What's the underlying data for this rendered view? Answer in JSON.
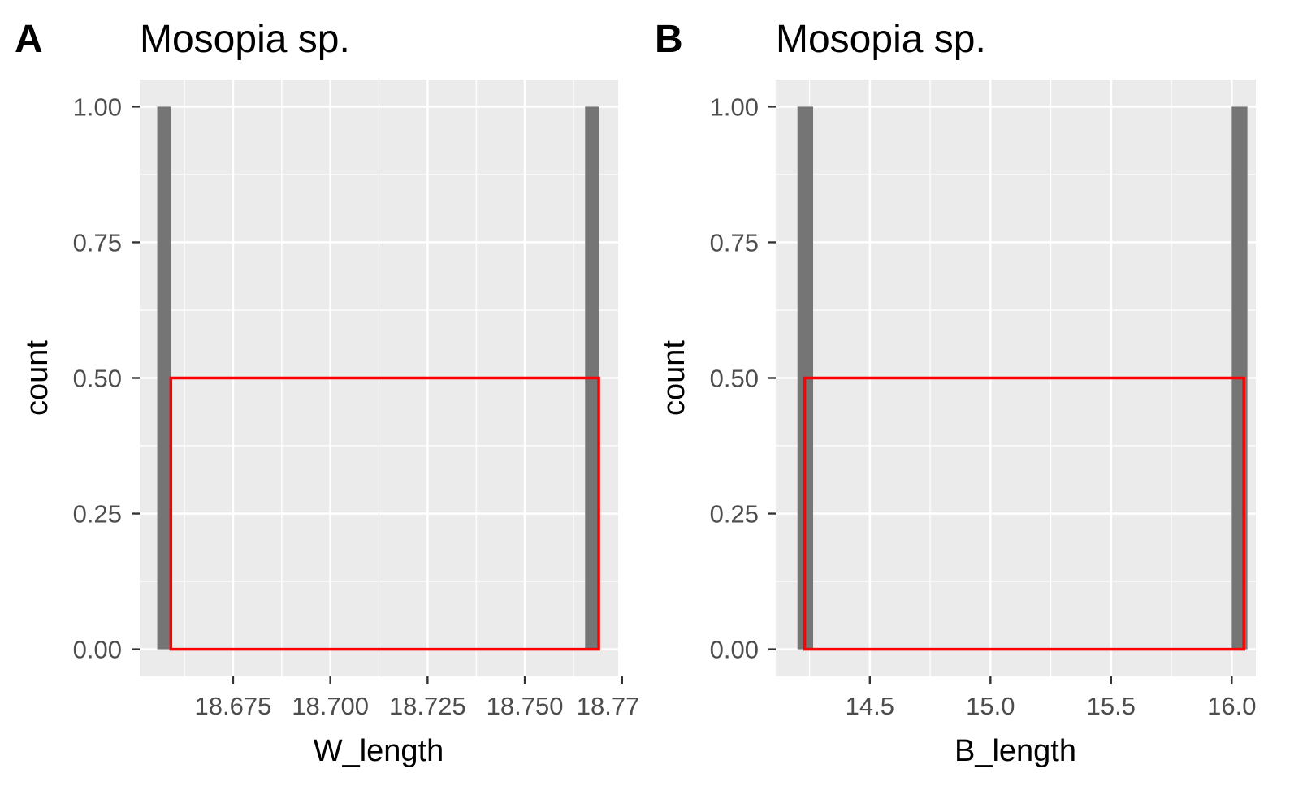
{
  "chart_data": [
    {
      "panel_tag": "A",
      "type": "bar",
      "title": "Mosopia sp.",
      "xlabel": "W_length",
      "ylabel": "count",
      "xlim": [
        18.651,
        18.774
      ],
      "ylim": [
        -0.05,
        1.05
      ],
      "x_ticks": [
        18.675,
        18.7,
        18.725,
        18.75,
        18.775
      ],
      "x_tick_labels": [
        "18.675",
        "18.700",
        "18.725",
        "18.750",
        "18.77"
      ],
      "y_ticks": [
        0,
        0.25,
        0.5,
        0.75,
        1
      ],
      "y_tick_labels": [
        "0.00",
        "0.25",
        "0.50",
        "0.75",
        "1.00"
      ],
      "bars": [
        {
          "xmin": 18.6555,
          "xmax": 18.659,
          "count": 1
        },
        {
          "xmin": 18.7655,
          "xmax": 18.769,
          "count": 1
        }
      ],
      "highlight_box": {
        "xmin": 18.659,
        "xmax": 18.769,
        "ymin": 0,
        "ymax": 0.5,
        "color": "#ff0000"
      },
      "bar_color": "#757575",
      "panel_background": "#ebebeb",
      "grid": true
    },
    {
      "panel_tag": "B",
      "type": "bar",
      "title": "Mosopia sp.",
      "xlabel": "B_length",
      "ylabel": "count",
      "xlim": [
        14.11,
        16.1
      ],
      "ylim": [
        -0.05,
        1.05
      ],
      "x_ticks": [
        14.5,
        15.0,
        15.5,
        16.0
      ],
      "x_tick_labels": [
        "14.5",
        "15.0",
        "15.5",
        "16.0"
      ],
      "y_ticks": [
        0,
        0.25,
        0.5,
        0.75,
        1
      ],
      "y_tick_labels": [
        "0.00",
        "0.25",
        "0.50",
        "0.75",
        "1.00"
      ],
      "bars": [
        {
          "xmin": 14.2,
          "xmax": 14.265,
          "count": 1
        },
        {
          "xmin": 16.0,
          "xmax": 16.065,
          "count": 1
        }
      ],
      "highlight_box": {
        "xmin": 14.23,
        "xmax": 16.05,
        "ymin": 0,
        "ymax": 0.5,
        "color": "#ff0000"
      },
      "bar_color": "#757575",
      "panel_background": "#ebebeb",
      "grid": true
    }
  ]
}
